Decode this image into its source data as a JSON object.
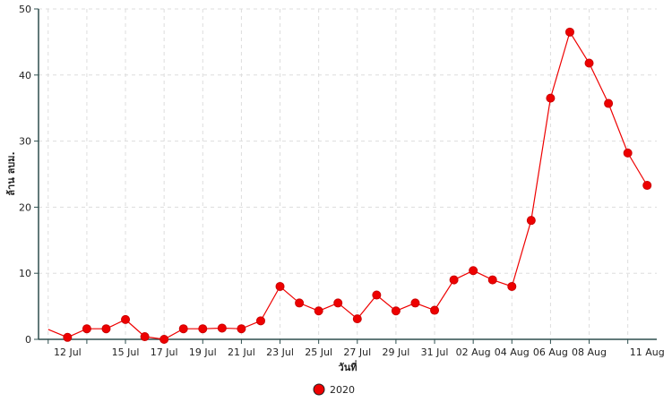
{
  "chart_data": {
    "type": "line",
    "title": "",
    "xlabel": "วันที่",
    "ylabel": "ล้าน ลบม.",
    "ylim": [
      0,
      50
    ],
    "yticks": [
      "0",
      "10",
      "20",
      "30",
      "40",
      "50"
    ],
    "grid": true,
    "legend_position": "bottom-center",
    "x_tick_labels": [
      "12 Jul",
      "15 Jul",
      "17 Jul",
      "19 Jul",
      "21 Jul",
      "23 Jul",
      "25 Jul",
      "27 Jul",
      "29 Jul",
      "31 Jul",
      "02 Aug",
      "04 Aug",
      "06 Aug",
      "08 Aug",
      "11 Aug"
    ],
    "x": [
      "2020-07-11",
      "2020-07-12",
      "2020-07-13",
      "2020-07-14",
      "2020-07-15",
      "2020-07-16",
      "2020-07-17",
      "2020-07-18",
      "2020-07-19",
      "2020-07-20",
      "2020-07-21",
      "2020-07-22",
      "2020-07-23",
      "2020-07-24",
      "2020-07-25",
      "2020-07-26",
      "2020-07-27",
      "2020-07-28",
      "2020-07-29",
      "2020-07-30",
      "2020-07-31",
      "2020-08-01",
      "2020-08-02",
      "2020-08-03",
      "2020-08-04",
      "2020-08-05",
      "2020-08-06",
      "2020-08-07",
      "2020-08-08",
      "2020-08-09",
      "2020-08-10",
      "2020-08-11"
    ],
    "series": [
      {
        "name": "2020",
        "color": "#ee0000",
        "values": [
          1.5,
          0.3,
          1.6,
          1.6,
          3.0,
          0.4,
          0.0,
          1.6,
          1.6,
          1.7,
          1.6,
          2.8,
          8.0,
          5.5,
          4.3,
          5.5,
          3.1,
          6.7,
          4.3,
          5.5,
          4.4,
          9.0,
          10.4,
          9.0,
          8.0,
          18.0,
          36.5,
          46.5,
          41.8,
          35.7,
          28.2,
          23.3
        ]
      }
    ]
  }
}
